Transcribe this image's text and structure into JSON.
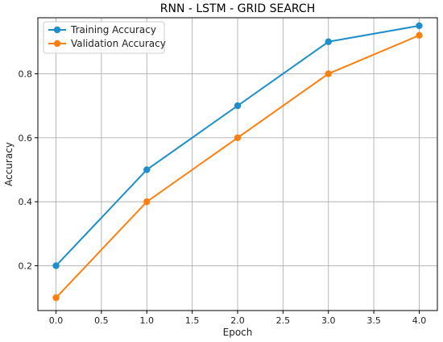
{
  "chart_data": {
    "type": "line",
    "title": "RNN - LSTM - GRID SEARCH",
    "xlabel": "Epoch",
    "ylabel": "Accuracy",
    "xlim": [
      -0.2,
      4.2
    ],
    "ylim": [
      0.06,
      0.975
    ],
    "x_ticks": [
      0.0,
      0.5,
      1.0,
      1.5,
      2.0,
      2.5,
      3.0,
      3.5,
      4.0
    ],
    "x_tick_labels": [
      "0.0",
      "0.5",
      "1.0",
      "1.5",
      "2.0",
      "2.5",
      "3.0",
      "3.5",
      "4.0"
    ],
    "y_ticks": [
      0.2,
      0.4,
      0.6,
      0.8
    ],
    "y_tick_labels": [
      "0.2",
      "0.4",
      "0.6",
      "0.8"
    ],
    "grid": true,
    "legend_position": "top-left",
    "x": [
      0,
      1,
      2,
      3,
      4
    ],
    "series": [
      {
        "name": "Training Accuracy",
        "color": "#1f8fc9",
        "values": [
          0.2,
          0.5,
          0.7,
          0.9,
          0.95
        ]
      },
      {
        "name": "Validation Accuracy",
        "color": "#ff7f0e",
        "values": [
          0.1,
          0.4,
          0.6,
          0.8,
          0.92
        ]
      }
    ]
  }
}
